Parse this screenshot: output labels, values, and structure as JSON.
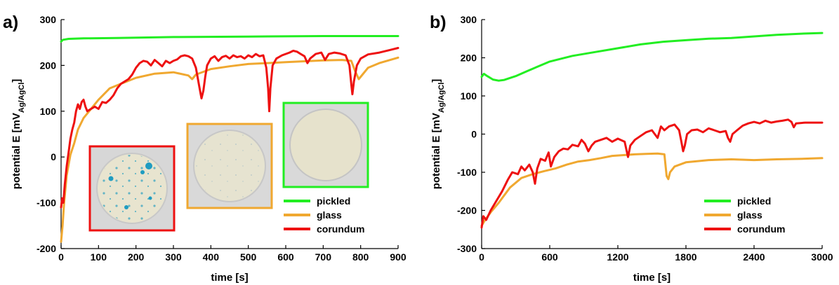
{
  "chart_data": [
    {
      "panel": "a)",
      "type": "line",
      "xlabel": "time [s]",
      "ylabel_main": "potential E [mV",
      "ylabel_sub": "Ag/AgCl",
      "ylabel_end": "]",
      "xlim": [
        0,
        900
      ],
      "ylim": [
        -200,
        300
      ],
      "xticks": [
        0,
        100,
        200,
        300,
        400,
        500,
        600,
        700,
        800,
        900
      ],
      "yticks": [
        -200,
        -100,
        0,
        100,
        200,
        300
      ],
      "legend": [
        "pickled",
        "glass",
        "corundum"
      ],
      "legend_position": "bottom-right",
      "inset_images": [
        "corundum sample disc",
        "glass sample disc",
        "pickled sample disc"
      ],
      "series": [
        {
          "name": "pickled",
          "color": "#22ee22",
          "points": [
            [
              0,
              252
            ],
            [
              5,
              256
            ],
            [
              20,
              258
            ],
            [
              60,
              259
            ],
            [
              150,
              260
            ],
            [
              300,
              262
            ],
            [
              500,
              263
            ],
            [
              700,
              264
            ],
            [
              900,
              264
            ]
          ]
        },
        {
          "name": "glass",
          "color": "#f0a830",
          "points": [
            [
              0,
              -185
            ],
            [
              4,
              -150
            ],
            [
              8,
              -100
            ],
            [
              15,
              -40
            ],
            [
              25,
              5
            ],
            [
              35,
              30
            ],
            [
              45,
              60
            ],
            [
              60,
              85
            ],
            [
              80,
              105
            ],
            [
              100,
              125
            ],
            [
              130,
              150
            ],
            [
              160,
              160
            ],
            [
              200,
              173
            ],
            [
              250,
              182
            ],
            [
              300,
              185
            ],
            [
              340,
              178
            ],
            [
              350,
              170
            ],
            [
              360,
              180
            ],
            [
              400,
              192
            ],
            [
              450,
              198
            ],
            [
              500,
              203
            ],
            [
              550,
              205
            ],
            [
              600,
              207
            ],
            [
              650,
              209
            ],
            [
              700,
              211
            ],
            [
              750,
              212
            ],
            [
              775,
              210
            ],
            [
              785,
              188
            ],
            [
              795,
              170
            ],
            [
              805,
              180
            ],
            [
              820,
              195
            ],
            [
              850,
              205
            ],
            [
              900,
              217
            ]
          ]
        },
        {
          "name": "corundum",
          "color": "#ee1111",
          "points": [
            [
              0,
              -110
            ],
            [
              3,
              -90
            ],
            [
              6,
              -100
            ],
            [
              10,
              -60
            ],
            [
              15,
              -20
            ],
            [
              20,
              10
            ],
            [
              25,
              40
            ],
            [
              30,
              60
            ],
            [
              35,
              75
            ],
            [
              40,
              100
            ],
            [
              45,
              115
            ],
            [
              50,
              105
            ],
            [
              55,
              120
            ],
            [
              60,
              125
            ],
            [
              65,
              110
            ],
            [
              70,
              100
            ],
            [
              80,
              105
            ],
            [
              90,
              110
            ],
            [
              100,
              105
            ],
            [
              110,
              120
            ],
            [
              120,
              118
            ],
            [
              130,
              125
            ],
            [
              140,
              135
            ],
            [
              150,
              150
            ],
            [
              160,
              160
            ],
            [
              170,
              165
            ],
            [
              180,
              170
            ],
            [
              190,
              180
            ],
            [
              200,
              195
            ],
            [
              210,
              205
            ],
            [
              220,
              210
            ],
            [
              230,
              208
            ],
            [
              240,
              200
            ],
            [
              250,
              212
            ],
            [
              260,
              205
            ],
            [
              270,
              198
            ],
            [
              280,
              210
            ],
            [
              290,
              205
            ],
            [
              300,
              210
            ],
            [
              310,
              213
            ],
            [
              320,
              220
            ],
            [
              330,
              222
            ],
            [
              340,
              220
            ],
            [
              350,
              215
            ],
            [
              360,
              195
            ],
            [
              370,
              150
            ],
            [
              375,
              128
            ],
            [
              380,
              145
            ],
            [
              385,
              175
            ],
            [
              390,
              200
            ],
            [
              400,
              215
            ],
            [
              410,
              220
            ],
            [
              420,
              210
            ],
            [
              430,
              218
            ],
            [
              440,
              221
            ],
            [
              450,
              215
            ],
            [
              460,
              222
            ],
            [
              470,
              218
            ],
            [
              480,
              220
            ],
            [
              490,
              215
            ],
            [
              500,
              222
            ],
            [
              510,
              218
            ],
            [
              520,
              225
            ],
            [
              530,
              220
            ],
            [
              540,
              222
            ],
            [
              548,
              195
            ],
            [
              553,
              150
            ],
            [
              556,
              100
            ],
            [
              559,
              150
            ],
            [
              565,
              200
            ],
            [
              575,
              215
            ],
            [
              590,
              222
            ],
            [
              610,
              228
            ],
            [
              620,
              232
            ],
            [
              630,
              230
            ],
            [
              640,
              225
            ],
            [
              650,
              220
            ],
            [
              658,
              205
            ],
            [
              665,
              215
            ],
            [
              680,
              225
            ],
            [
              695,
              228
            ],
            [
              705,
              212
            ],
            [
              715,
              225
            ],
            [
              730,
              228
            ],
            [
              745,
              226
            ],
            [
              760,
              222
            ],
            [
              770,
              200
            ],
            [
              775,
              160
            ],
            [
              778,
              137
            ],
            [
              782,
              165
            ],
            [
              790,
              200
            ],
            [
              800,
              215
            ],
            [
              820,
              224
            ],
            [
              850,
              228
            ],
            [
              880,
              234
            ],
            [
              900,
              238
            ]
          ]
        }
      ]
    },
    {
      "panel": "b)",
      "type": "line",
      "xlabel": "time [s]",
      "ylabel_main": "potential E [mV",
      "ylabel_sub": "Ag/AgCl",
      "ylabel_end": "]",
      "xlim": [
        0,
        3000
      ],
      "ylim": [
        -300,
        300
      ],
      "xticks": [
        0,
        600,
        1200,
        1800,
        2400,
        3000
      ],
      "yticks": [
        -300,
        -200,
        -100,
        0,
        100,
        200,
        300
      ],
      "legend": [
        "pickled",
        "glass",
        "corundum"
      ],
      "legend_position": "bottom-right",
      "series": [
        {
          "name": "pickled",
          "color": "#22ee22",
          "points": [
            [
              0,
              150
            ],
            [
              20,
              158
            ],
            [
              50,
              152
            ],
            [
              100,
              143
            ],
            [
              150,
              140
            ],
            [
              200,
              142
            ],
            [
              300,
              152
            ],
            [
              400,
              165
            ],
            [
              600,
              190
            ],
            [
              800,
              205
            ],
            [
              1000,
              215
            ],
            [
              1200,
              225
            ],
            [
              1400,
              235
            ],
            [
              1600,
              242
            ],
            [
              1800,
              246
            ],
            [
              2000,
              250
            ],
            [
              2200,
              252
            ],
            [
              2400,
              256
            ],
            [
              2600,
              260
            ],
            [
              2800,
              263
            ],
            [
              3000,
              265
            ]
          ]
        },
        {
          "name": "glass",
          "color": "#f0a830",
          "points": [
            [
              0,
              -240
            ],
            [
              30,
              -225
            ],
            [
              80,
              -205
            ],
            [
              150,
              -180
            ],
            [
              250,
              -140
            ],
            [
              350,
              -115
            ],
            [
              450,
              -105
            ],
            [
              550,
              -97
            ],
            [
              650,
              -90
            ],
            [
              750,
              -80
            ],
            [
              850,
              -72
            ],
            [
              950,
              -68
            ],
            [
              1050,
              -63
            ],
            [
              1150,
              -57
            ],
            [
              1250,
              -55
            ],
            [
              1350,
              -53
            ],
            [
              1450,
              -52
            ],
            [
              1550,
              -51
            ],
            [
              1610,
              -53
            ],
            [
              1630,
              -110
            ],
            [
              1645,
              -118
            ],
            [
              1660,
              -100
            ],
            [
              1700,
              -85
            ],
            [
              1800,
              -74
            ],
            [
              2000,
              -68
            ],
            [
              2200,
              -66
            ],
            [
              2400,
              -68
            ],
            [
              2600,
              -66
            ],
            [
              2800,
              -65
            ],
            [
              3000,
              -63
            ]
          ]
        },
        {
          "name": "corundum",
          "color": "#ee1111",
          "points": [
            [
              0,
              -245
            ],
            [
              15,
              -215
            ],
            [
              40,
              -225
            ],
            [
              80,
              -200
            ],
            [
              130,
              -175
            ],
            [
              180,
              -150
            ],
            [
              230,
              -120
            ],
            [
              270,
              -100
            ],
            [
              320,
              -105
            ],
            [
              350,
              -85
            ],
            [
              380,
              -95
            ],
            [
              420,
              -80
            ],
            [
              450,
              -100
            ],
            [
              470,
              -130
            ],
            [
              490,
              -90
            ],
            [
              520,
              -65
            ],
            [
              560,
              -70
            ],
            [
              590,
              -48
            ],
            [
              610,
              -85
            ],
            [
              640,
              -60
            ],
            [
              680,
              -45
            ],
            [
              720,
              -38
            ],
            [
              760,
              -40
            ],
            [
              800,
              -28
            ],
            [
              850,
              -32
            ],
            [
              880,
              -15
            ],
            [
              910,
              -25
            ],
            [
              940,
              -45
            ],
            [
              970,
              -30
            ],
            [
              1000,
              -20
            ],
            [
              1050,
              -15
            ],
            [
              1100,
              -10
            ],
            [
              1150,
              -20
            ],
            [
              1200,
              -12
            ],
            [
              1260,
              -20
            ],
            [
              1290,
              -60
            ],
            [
              1310,
              -30
            ],
            [
              1350,
              -15
            ],
            [
              1400,
              -5
            ],
            [
              1450,
              5
            ],
            [
              1500,
              10
            ],
            [
              1550,
              -10
            ],
            [
              1580,
              20
            ],
            [
              1610,
              10
            ],
            [
              1650,
              20
            ],
            [
              1700,
              25
            ],
            [
              1740,
              10
            ],
            [
              1760,
              -20
            ],
            [
              1775,
              -45
            ],
            [
              1790,
              -30
            ],
            [
              1810,
              0
            ],
            [
              1850,
              10
            ],
            [
              1900,
              12
            ],
            [
              1950,
              5
            ],
            [
              2000,
              15
            ],
            [
              2050,
              10
            ],
            [
              2100,
              5
            ],
            [
              2150,
              8
            ],
            [
              2170,
              -10
            ],
            [
              2190,
              -20
            ],
            [
              2210,
              0
            ],
            [
              2250,
              10
            ],
            [
              2300,
              22
            ],
            [
              2350,
              28
            ],
            [
              2400,
              32
            ],
            [
              2450,
              28
            ],
            [
              2500,
              35
            ],
            [
              2550,
              30
            ],
            [
              2600,
              33
            ],
            [
              2650,
              35
            ],
            [
              2700,
              38
            ],
            [
              2730,
              32
            ],
            [
              2750,
              18
            ],
            [
              2770,
              28
            ],
            [
              2850,
              30
            ],
            [
              3000,
              30
            ]
          ]
        }
      ]
    }
  ]
}
